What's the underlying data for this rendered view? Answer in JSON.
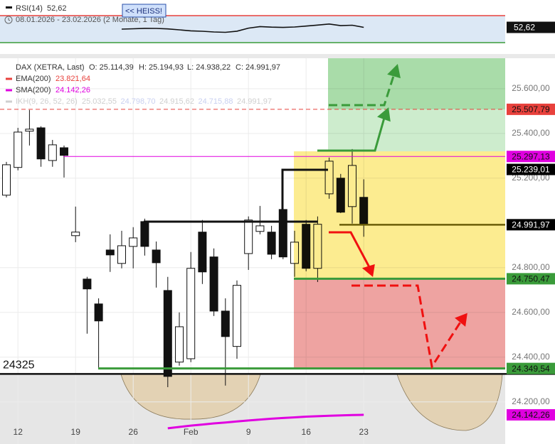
{
  "chart_data": [
    {
      "type": "line",
      "title": "RSI(14)",
      "subtitle": "08.01.2026 - 23.02.2026 (2 Monate, 1 Tag)",
      "button": "<< HEISS!",
      "last_label": "52,62",
      "ylim": [
        30,
        70
      ],
      "series": [
        {
          "name": "RSI(14)",
          "color": "#111111",
          "values": [
            null,
            null,
            null,
            null,
            null,
            null,
            null,
            null,
            null,
            null,
            50.0,
            50.5,
            51.2,
            51.0,
            50.3,
            49.0,
            47.5,
            46.8,
            45.8,
            45.3,
            47.0,
            51.5,
            53.8,
            53.0,
            52.5,
            53.2,
            54.5,
            56.0,
            57.6,
            55.2,
            55.8,
            52.62
          ]
        }
      ]
    },
    {
      "type": "candlestick",
      "title": "DAX (XETRA, Last)",
      "header_values": [
        "O: 25.114,39",
        "H: 25.194,93",
        "L: 24.938,22",
        "C: 24.991,97"
      ],
      "legend": [
        {
          "name": "EMA(200)",
          "label": "23.821,64",
          "color": "#e8413c"
        },
        {
          "name": "SMA(200)",
          "label": "24.142,26",
          "color": "#e000e0"
        },
        {
          "name": "IKH(9, 26, 52, 26)",
          "labels": [
            "25.032,55",
            "24.798,70",
            "24.915,62",
            "24.715,88",
            "24.991,97"
          ],
          "color": "#cfcfcf"
        }
      ],
      "categories": [
        null,
        "12",
        null,
        null,
        null,
        null,
        "19",
        null,
        null,
        null,
        null,
        "26",
        null,
        null,
        null,
        null,
        "Feb",
        null,
        null,
        null,
        null,
        "9",
        null,
        null,
        null,
        null,
        "16",
        null,
        null,
        null,
        null,
        "23"
      ],
      "open": [
        25124,
        25248,
        25410,
        25425,
        25279,
        25336,
        24943,
        24749,
        24638,
        24879,
        24819,
        24895,
        25006,
        24879,
        24698,
        24378,
        24393,
        24959,
        24848,
        24606,
        24448,
        24863,
        24962,
        24959,
        25060,
        24819,
        24994,
        24797,
        25130,
        25200,
        25073,
        25114.39
      ],
      "high": [
        25273,
        25425,
        25505,
        25432,
        25371,
        25346,
        25073,
        24759,
        24663,
        24949,
        24965,
        24981,
        25019,
        24917,
        24759,
        24600,
        24870,
        25013,
        24886,
        24663,
        24743,
        25029,
        25076,
        24987,
        25155,
        24965,
        25013,
        25029,
        25292,
        25219,
        25330,
        25194.93
      ],
      "low": [
        25114,
        25235,
        25346,
        25251,
        25251,
        25203,
        24914,
        24505,
        24346,
        24781,
        24797,
        24797,
        24854,
        24711,
        24266,
        24362,
        24378,
        24727,
        24584,
        24273,
        24393,
        24790,
        24949,
        24838,
        24838,
        24759,
        24784,
        24736,
        25108,
        25044,
        24997,
        24938.22
      ],
      "close": [
        25260,
        25406,
        25419,
        25286,
        25349,
        25302,
        24959,
        24705,
        24562,
        24857,
        24898,
        24933,
        24895,
        24822,
        24314,
        24536,
        24797,
        24781,
        24606,
        24492,
        24721,
        25013,
        24987,
        24860,
        24848,
        24914,
        24797,
        24994,
        25276,
        25048,
        25257,
        24991.97
      ],
      "series": [
        {
          "name": "SMA(200)",
          "color": "#e000e0",
          "values": [
            null,
            null,
            null,
            null,
            null,
            null,
            null,
            null,
            null,
            null,
            null,
            null,
            null,
            null,
            24082,
            24088,
            24094,
            24099,
            24104,
            24108,
            24113,
            24117,
            24121,
            24125,
            24128,
            24131,
            24134,
            24136,
            24138,
            24140,
            24141,
            24142.26
          ]
        }
      ],
      "ylim": [
        24050,
        25736
      ],
      "yticks": [
        {
          "value": 25600,
          "label": "25.600,00"
        },
        {
          "value": 25400,
          "label": "25.400,00"
        },
        {
          "value": 25200,
          "label": "25.200,00"
        },
        {
          "value": 24800,
          "label": "24.800,00"
        },
        {
          "value": 24600,
          "label": "24.600,00"
        },
        {
          "value": 24400,
          "label": "24.400,00"
        },
        {
          "value": 24200,
          "label": "24.200,00"
        }
      ],
      "grid": true,
      "support_level": 24325,
      "markers": [
        {
          "value": 25507.79,
          "label": "25.507,79",
          "color": "#e8413c"
        },
        {
          "value": 25297.13,
          "label": "25.297,13",
          "color": "#e000e0"
        },
        {
          "value": 25239.01,
          "label": "25.239,01",
          "color": "#000000"
        },
        {
          "value": 24991.97,
          "label": "24.991,97",
          "color": "#000000"
        },
        {
          "value": 24750.47,
          "label": "24.750,47",
          "color": "#3a9b3a"
        },
        {
          "value": 24349.54,
          "label": "24.349,54",
          "color": "#3a9b3a"
        },
        {
          "value": 24142.26,
          "label": "24.142,26",
          "color": "#e000e0"
        }
      ]
    }
  ]
}
